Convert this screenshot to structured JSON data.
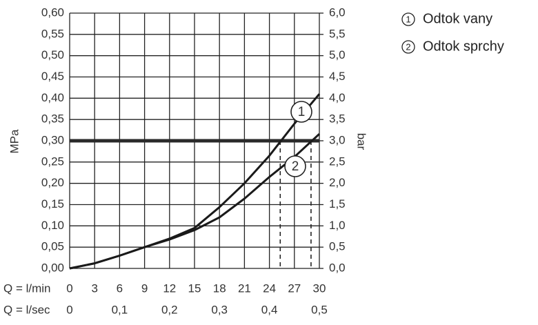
{
  "chart_data": {
    "type": "line",
    "x_label": "Q = l/min",
    "x2_label": "Q = l/sec",
    "y_label": "MPa",
    "y2_label": "bar",
    "x": [
      0,
      3,
      6,
      9,
      12,
      15,
      18,
      21,
      24,
      27,
      30
    ],
    "series": [
      {
        "name": "Odtok vany",
        "label": "1",
        "color": "#1a1a1a",
        "values": [
          0,
          0.012,
          0.03,
          0.05,
          0.07,
          0.095,
          0.144,
          0.2,
          0.265,
          0.34,
          0.41
        ]
      },
      {
        "name": "Odtok sprchy",
        "label": "2",
        "color": "#1a1a1a",
        "values": [
          0,
          0.012,
          0.03,
          0.05,
          0.068,
          0.09,
          0.12,
          0.164,
          0.215,
          0.262,
          0.316
        ]
      }
    ],
    "xlim": [
      0,
      30
    ],
    "xticks": [
      0,
      3,
      6,
      9,
      12,
      15,
      18,
      21,
      24,
      27,
      30
    ],
    "x2lim": [
      0,
      0.5
    ],
    "x2ticks": [
      0,
      {
        "value": 0.1,
        "label": "0,1"
      },
      {
        "value": 0.2,
        "label": "0,2"
      },
      {
        "value": 0.3,
        "label": "0,3"
      },
      {
        "value": 0.4,
        "label": "0,4"
      },
      {
        "value": 0.5,
        "label": "0,5"
      }
    ],
    "ylim": [
      0,
      0.6
    ],
    "yticks": [
      {
        "value": 0,
        "label": "0,00"
      },
      {
        "value": 0.05,
        "label": "0,05"
      },
      {
        "value": 0.1,
        "label": "0,10"
      },
      {
        "value": 0.15,
        "label": "0,15"
      },
      {
        "value": 0.2,
        "label": "0,20"
      },
      {
        "value": 0.25,
        "label": "0,25"
      },
      {
        "value": 0.3,
        "label": "0,30"
      },
      {
        "value": 0.35,
        "label": "0,35"
      },
      {
        "value": 0.4,
        "label": "0,40"
      },
      {
        "value": 0.45,
        "label": "0,45"
      },
      {
        "value": 0.5,
        "label": "0,50"
      },
      {
        "value": 0.55,
        "label": "0,55"
      },
      {
        "value": 0.6,
        "label": "0,60"
      }
    ],
    "y2lim": [
      0,
      6
    ],
    "y2ticks": [
      {
        "value": 0,
        "label": "0,0"
      },
      {
        "value": 0.5,
        "label": "0,5"
      },
      {
        "value": 1,
        "label": "1,0"
      },
      {
        "value": 1.5,
        "label": "1,5"
      },
      {
        "value": 2,
        "label": "2,0"
      },
      {
        "value": 2.5,
        "label": "2,5"
      },
      {
        "value": 3,
        "label": "3,0"
      },
      {
        "value": 3.5,
        "label": "3,5"
      },
      {
        "value": 4,
        "label": "4,0"
      },
      {
        "value": 4.5,
        "label": "4,5"
      },
      {
        "value": 5,
        "label": "5,0"
      },
      {
        "value": 5.5,
        "label": "5,5"
      },
      {
        "value": 6,
        "label": "6,0"
      }
    ],
    "grid": true,
    "reference_line": {
      "y": 0.3,
      "color": "#2a2a2a"
    },
    "dashed_lines": {
      "x": [
        25.3,
        29
      ],
      "y": 0.3
    }
  }
}
